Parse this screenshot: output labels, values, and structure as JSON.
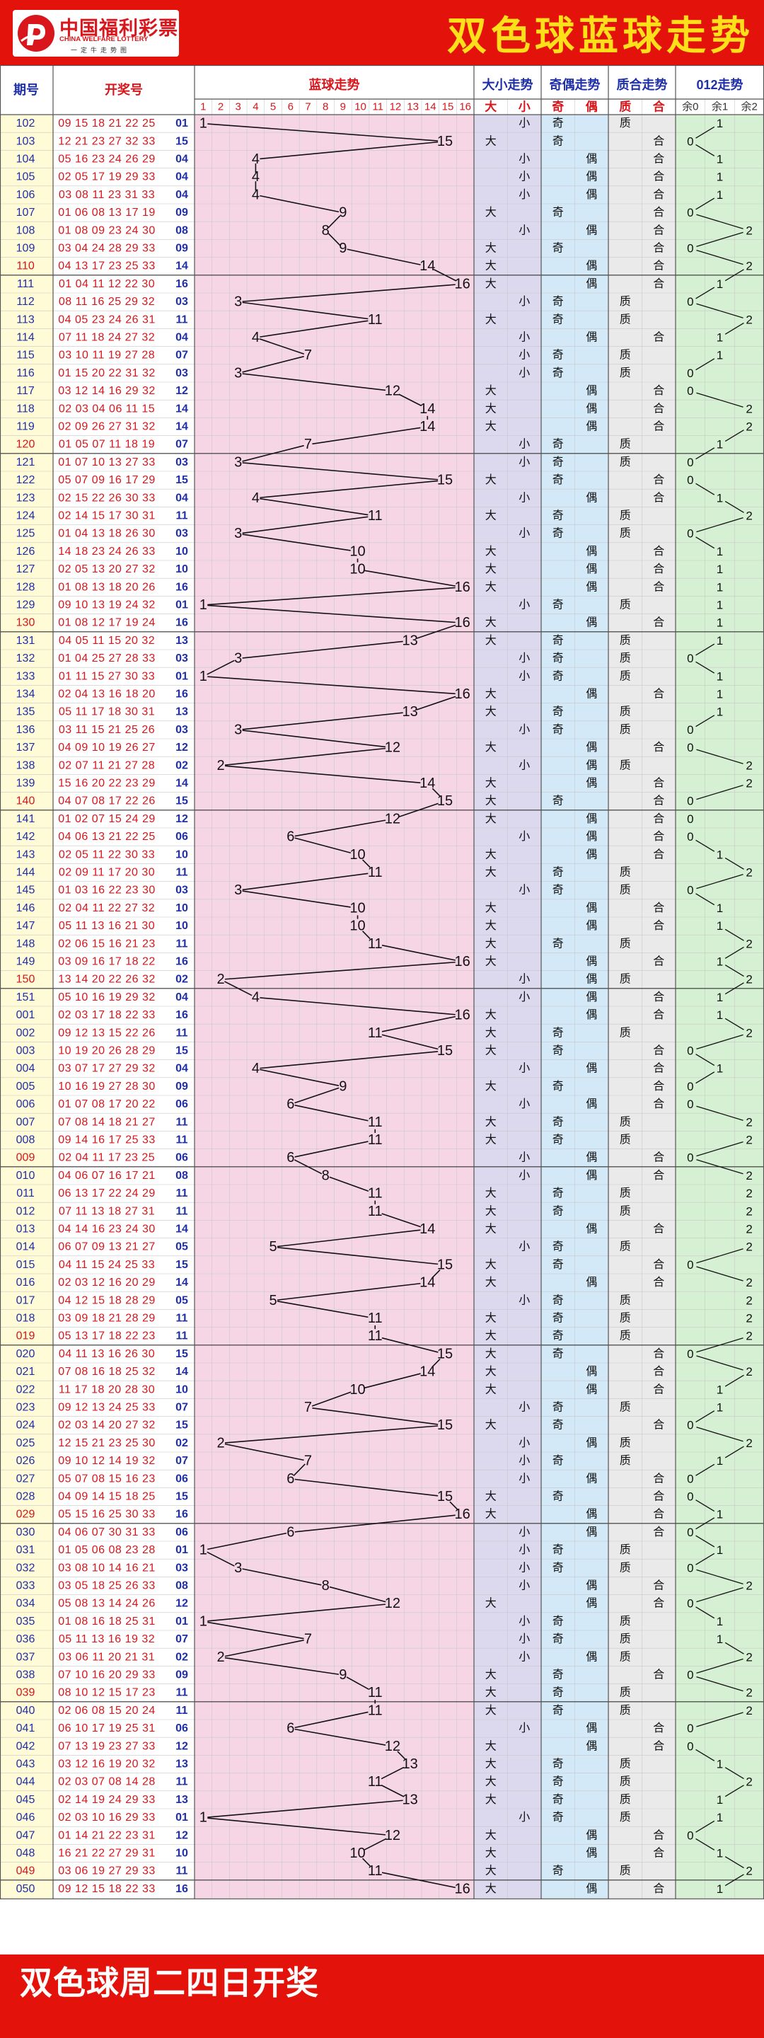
{
  "header": {
    "logo_cn": "中国福利彩票",
    "logo_en": "CHINA WELFARE LOTTERY",
    "logo_slogan": "一定牛走势图",
    "title": "双色球蓝球走势"
  },
  "footer": {
    "text": "双色球周二四日开奖"
  },
  "columns": {
    "issue": "期号",
    "numbers": "开奖号",
    "blue_trend": "蓝球走势",
    "size_trend": "大小走势",
    "parity_trend": "奇偶走势",
    "prime_trend": "质合走势",
    "mod3_trend": "012走势",
    "big": "大",
    "small": "小",
    "odd": "奇",
    "even": "偶",
    "prime": "质",
    "composite": "合",
    "mod_labels": [
      "余0",
      "余1",
      "余2"
    ],
    "blue_ticks": [
      "1",
      "2",
      "3",
      "4",
      "5",
      "6",
      "7",
      "8",
      "9",
      "10",
      "11",
      "12",
      "13",
      "14",
      "15",
      "16"
    ]
  },
  "colors": {
    "brand_red": "#e3120b",
    "title_yellow": "#fde01a",
    "red_numbers": "#d8161b",
    "blue_numbers": "#1f2fa8",
    "bg_issue": "#fffbd6",
    "bg_blue_trend": "#f6d6e5",
    "bg_size": "#dcd8ee",
    "bg_parity": "#d3e9f7",
    "bg_prime": "#eaeaea",
    "bg_mod": "#d6f0d3"
  },
  "draws": [
    [
      "102",
      "09 15 18 21 22 25",
      "01"
    ],
    [
      "103",
      "12 21 23 27 32 33",
      "15"
    ],
    [
      "104",
      "05 16 23 24 26 29",
      "04"
    ],
    [
      "105",
      "02 05 17 19 29 33",
      "04"
    ],
    [
      "106",
      "03 08 11 23 31 33",
      "04"
    ],
    [
      "107",
      "01 06 08 13 17 19",
      "09"
    ],
    [
      "108",
      "01 08 09 23 24 30",
      "08"
    ],
    [
      "109",
      "03 04 24 28 29 33",
      "09"
    ],
    [
      "110",
      "04 13 17 23 25 33",
      "14"
    ],
    [
      "111",
      "01 04 11 12 22 30",
      "16"
    ],
    [
      "112",
      "08 11 16 25 29 32",
      "03"
    ],
    [
      "113",
      "04 05 23 24 26 31",
      "11"
    ],
    [
      "114",
      "07 11 18 24 27 32",
      "04"
    ],
    [
      "115",
      "03 10 11 19 27 28",
      "07"
    ],
    [
      "116",
      "01 15 20 22 31 32",
      "03"
    ],
    [
      "117",
      "03 12 14 16 29 32",
      "12"
    ],
    [
      "118",
      "02 03 04 06 11 15",
      "14"
    ],
    [
      "119",
      "02 09 26 27 31 32",
      "14"
    ],
    [
      "120",
      "01 05 07 11 18 19",
      "07"
    ],
    [
      "121",
      "01 07 10 13 27 33",
      "03"
    ],
    [
      "122",
      "05 07 09 16 17 29",
      "15"
    ],
    [
      "123",
      "02 15 22 26 30 33",
      "04"
    ],
    [
      "124",
      "02 14 15 17 30 31",
      "11"
    ],
    [
      "125",
      "01 04 13 18 26 30",
      "03"
    ],
    [
      "126",
      "14 18 23 24 26 33",
      "10"
    ],
    [
      "127",
      "02 05 13 20 27 32",
      "10"
    ],
    [
      "128",
      "01 08 13 18 20 26",
      "16"
    ],
    [
      "129",
      "09 10 13 19 24 32",
      "01"
    ],
    [
      "130",
      "01 08 12 17 19 24",
      "16"
    ],
    [
      "131",
      "04 05 11 15 20 32",
      "13"
    ],
    [
      "132",
      "01 04 25 27 28 33",
      "03"
    ],
    [
      "133",
      "01 11 15 27 30 33",
      "01"
    ],
    [
      "134",
      "02 04 13 16 18 20",
      "16"
    ],
    [
      "135",
      "05 11 17 18 30 31",
      "13"
    ],
    [
      "136",
      "03 11 15 21 25 26",
      "03"
    ],
    [
      "137",
      "04 09 10 19 26 27",
      "12"
    ],
    [
      "138",
      "02 07 11 21 27 28",
      "02"
    ],
    [
      "139",
      "15 16 20 22 23 29",
      "14"
    ],
    [
      "140",
      "04 07 08 17 22 26",
      "15"
    ],
    [
      "141",
      "01 02 07 15 24 29",
      "12"
    ],
    [
      "142",
      "04 06 13 21 22 25",
      "06"
    ],
    [
      "143",
      "02 05 11 22 30 33",
      "10"
    ],
    [
      "144",
      "02 09 11 17 20 30",
      "11"
    ],
    [
      "145",
      "01 03 16 22 23 30",
      "03"
    ],
    [
      "146",
      "02 04 11 22 27 32",
      "10"
    ],
    [
      "147",
      "05 11 13 16 21 30",
      "10"
    ],
    [
      "148",
      "02 06 15 16 21 23",
      "11"
    ],
    [
      "149",
      "03 09 16 17 18 22",
      "16"
    ],
    [
      "150",
      "13 14 20 22 26 32",
      "02"
    ],
    [
      "151",
      "05 10 16 19 29 32",
      "04"
    ],
    [
      "001",
      "02 03 17 18 22 33",
      "16"
    ],
    [
      "002",
      "09 12 13 15 22 26",
      "11"
    ],
    [
      "003",
      "10 19 20 26 28 29",
      "15"
    ],
    [
      "004",
      "03 07 17 27 29 32",
      "04"
    ],
    [
      "005",
      "10 16 19 27 28 30",
      "09"
    ],
    [
      "006",
      "01 07 08 17 20 22",
      "06"
    ],
    [
      "007",
      "07 08 14 18 21 27",
      "11"
    ],
    [
      "008",
      "09 14 16 17 25 33",
      "11"
    ],
    [
      "009",
      "02 04 11 17 23 25",
      "06"
    ],
    [
      "010",
      "04 06 07 16 17 21",
      "08"
    ],
    [
      "011",
      "06 13 17 22 24 29",
      "11"
    ],
    [
      "012",
      "07 11 13 18 27 31",
      "11"
    ],
    [
      "013",
      "04 14 16 23 24 30",
      "14"
    ],
    [
      "014",
      "06 07 09 13 21 27",
      "05"
    ],
    [
      "015",
      "04 11 15 24 25 33",
      "15"
    ],
    [
      "016",
      "02 03 12 16 20 29",
      "14"
    ],
    [
      "017",
      "04 12 15 18 28 29",
      "05"
    ],
    [
      "018",
      "03 09 18 21 28 29",
      "11"
    ],
    [
      "019",
      "05 13 17 18 22 23",
      "11"
    ],
    [
      "020",
      "04 11 13 16 26 30",
      "15"
    ],
    [
      "021",
      "07 08 16 18 25 32",
      "14"
    ],
    [
      "022",
      "11 17 18 20 28 30",
      "10"
    ],
    [
      "023",
      "09 12 13 24 25 33",
      "07"
    ],
    [
      "024",
      "02 03 14 20 27 32",
      "15"
    ],
    [
      "025",
      "12 15 21 23 25 30",
      "02"
    ],
    [
      "026",
      "09 10 12 14 19 32",
      "07"
    ],
    [
      "027",
      "05 07 08 15 16 23",
      "06"
    ],
    [
      "028",
      "04 09 14 15 18 25",
      "15"
    ],
    [
      "029",
      "05 15 16 25 30 33",
      "16"
    ],
    [
      "030",
      "04 06 07 30 31 33",
      "06"
    ],
    [
      "031",
      "01 05 06 08 23 28",
      "01"
    ],
    [
      "032",
      "03 08 10 14 16 21",
      "03"
    ],
    [
      "033",
      "03 05 18 25 26 33",
      "08"
    ],
    [
      "034",
      "05 08 13 14 24 26",
      "12"
    ],
    [
      "035",
      "01 08 16 18 25 31",
      "01"
    ],
    [
      "036",
      "05 11 13 16 19 32",
      "07"
    ],
    [
      "037",
      "03 06 11 20 21 31",
      "02"
    ],
    [
      "038",
      "07 10 16 20 29 33",
      "09"
    ],
    [
      "039",
      "08 10 12 15 17 23",
      "11"
    ],
    [
      "040",
      "02 06 08 15 20 24",
      "11"
    ],
    [
      "041",
      "06 10 17 19 25 31",
      "06"
    ],
    [
      "042",
      "07 13 19 23 27 33",
      "12"
    ],
    [
      "043",
      "03 12 16 19 20 32",
      "13"
    ],
    [
      "044",
      "02 03 07 08 14 28",
      "11"
    ],
    [
      "045",
      "02 14 19 24 29 33",
      "13"
    ],
    [
      "046",
      "02 03 10 16 29 33",
      "01"
    ],
    [
      "047",
      "01 14 21 22 23 31",
      "12"
    ],
    [
      "048",
      "16 21 22 27 29 31",
      "10"
    ],
    [
      "049",
      "03 06 19 27 29 33",
      "11"
    ],
    [
      "050",
      "09 12 15 18 22 33",
      "16"
    ]
  ]
}
